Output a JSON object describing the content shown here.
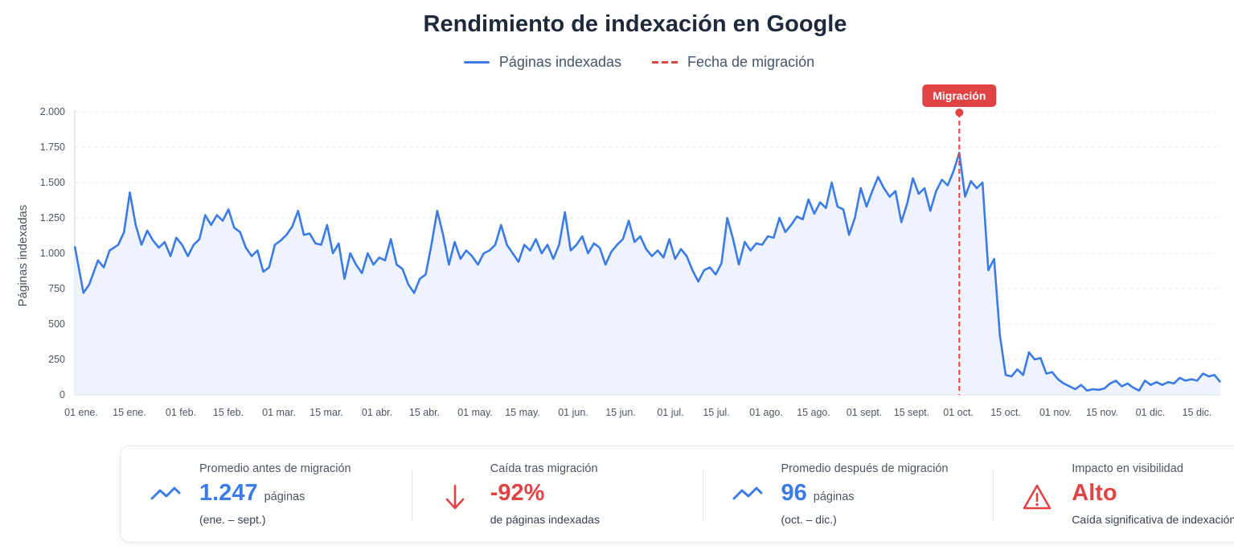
{
  "header": {
    "title": "Rendimiento de indexación en Google",
    "legend": [
      {
        "label": "Páginas indexadas",
        "color": "#3b7be6",
        "style": "solid"
      },
      {
        "label": "Fecha de migración",
        "color": "#e04343",
        "style": "dashed"
      }
    ]
  },
  "chart_data": {
    "type": "area",
    "title": "Rendimiento de indexación en Google",
    "xlabel": "",
    "ylabel": "Páginas indexadas",
    "ylim": [
      0,
      2000
    ],
    "yticks": [
      0,
      250,
      500,
      750,
      1000,
      1250,
      1500,
      1750,
      2000
    ],
    "ytick_labels": [
      "0",
      "250",
      "500",
      "750",
      "1.000",
      "1.250",
      "1.500",
      "1.750",
      "2.000"
    ],
    "x_start": "01 ene.",
    "x_end": "23 dic.",
    "xtick_labels": [
      "01 ene.",
      "15 ene.",
      "01 feb.",
      "15 feb.",
      "01 mar.",
      "15 mar.",
      "01 abr.",
      "15 abr.",
      "01 may.",
      "15 may.",
      "01 jun.",
      "15 jun.",
      "01 jul.",
      "15 jul.",
      "01 ago.",
      "15 ago.",
      "01 sept.",
      "15 sept.",
      "01 oct.",
      "15 oct.",
      "01 nov.",
      "15 nov.",
      "01 dic.",
      "15 dic."
    ],
    "grid": true,
    "legend_position": "top",
    "series": [
      {
        "name": "Páginas indexadas",
        "color": "#3b7be6",
        "points": [
          [
            0,
            1050
          ],
          [
            3,
            720
          ],
          [
            5,
            780
          ],
          [
            8,
            950
          ],
          [
            10,
            900
          ],
          [
            12,
            1020
          ],
          [
            15,
            1060
          ],
          [
            17,
            1150
          ],
          [
            19,
            1430
          ],
          [
            21,
            1200
          ],
          [
            23,
            1060
          ],
          [
            25,
            1160
          ],
          [
            27,
            1090
          ],
          [
            29,
            1040
          ],
          [
            31,
            1080
          ],
          [
            33,
            980
          ],
          [
            35,
            1110
          ],
          [
            37,
            1060
          ],
          [
            39,
            980
          ],
          [
            41,
            1060
          ],
          [
            43,
            1100
          ],
          [
            45,
            1270
          ],
          [
            47,
            1200
          ],
          [
            49,
            1270
          ],
          [
            51,
            1230
          ],
          [
            53,
            1310
          ],
          [
            55,
            1180
          ],
          [
            57,
            1150
          ],
          [
            59,
            1040
          ],
          [
            61,
            980
          ],
          [
            63,
            1020
          ],
          [
            65,
            870
          ],
          [
            67,
            900
          ],
          [
            69,
            1060
          ],
          [
            71,
            1090
          ],
          [
            73,
            1130
          ],
          [
            75,
            1190
          ],
          [
            77,
            1300
          ],
          [
            79,
            1130
          ],
          [
            81,
            1140
          ],
          [
            83,
            1070
          ],
          [
            85,
            1060
          ],
          [
            87,
            1200
          ],
          [
            89,
            1000
          ],
          [
            91,
            1070
          ],
          [
            93,
            820
          ],
          [
            95,
            1000
          ],
          [
            97,
            920
          ],
          [
            99,
            860
          ],
          [
            101,
            1000
          ],
          [
            103,
            920
          ],
          [
            105,
            970
          ],
          [
            107,
            950
          ],
          [
            109,
            1100
          ],
          [
            111,
            920
          ],
          [
            113,
            890
          ],
          [
            115,
            780
          ],
          [
            117,
            720
          ],
          [
            119,
            820
          ],
          [
            121,
            850
          ],
          [
            123,
            1060
          ],
          [
            125,
            1300
          ],
          [
            127,
            1130
          ],
          [
            129,
            920
          ],
          [
            131,
            1080
          ],
          [
            133,
            960
          ],
          [
            135,
            1020
          ],
          [
            137,
            980
          ],
          [
            139,
            920
          ],
          [
            141,
            1000
          ],
          [
            143,
            1020
          ],
          [
            145,
            1060
          ],
          [
            147,
            1200
          ],
          [
            149,
            1060
          ],
          [
            151,
            1000
          ],
          [
            153,
            940
          ],
          [
            155,
            1060
          ],
          [
            157,
            1020
          ],
          [
            159,
            1100
          ],
          [
            161,
            1000
          ],
          [
            163,
            1060
          ],
          [
            165,
            960
          ],
          [
            167,
            1060
          ],
          [
            169,
            1290
          ],
          [
            171,
            1020
          ],
          [
            173,
            1060
          ],
          [
            175,
            1120
          ],
          [
            177,
            1000
          ],
          [
            179,
            1070
          ],
          [
            181,
            1040
          ],
          [
            183,
            920
          ],
          [
            185,
            1010
          ],
          [
            187,
            1060
          ],
          [
            189,
            1100
          ],
          [
            191,
            1230
          ],
          [
            193,
            1080
          ],
          [
            195,
            1120
          ],
          [
            197,
            1030
          ],
          [
            199,
            980
          ],
          [
            201,
            1020
          ],
          [
            203,
            970
          ],
          [
            205,
            1100
          ],
          [
            207,
            960
          ],
          [
            209,
            1030
          ],
          [
            211,
            980
          ],
          [
            213,
            880
          ],
          [
            215,
            800
          ],
          [
            217,
            880
          ],
          [
            219,
            900
          ],
          [
            221,
            850
          ],
          [
            223,
            930
          ],
          [
            225,
            1250
          ],
          [
            227,
            1100
          ],
          [
            229,
            920
          ],
          [
            231,
            1080
          ],
          [
            233,
            1020
          ],
          [
            235,
            1070
          ],
          [
            237,
            1060
          ],
          [
            239,
            1120
          ],
          [
            241,
            1110
          ],
          [
            243,
            1250
          ],
          [
            245,
            1150
          ],
          [
            247,
            1200
          ],
          [
            249,
            1260
          ],
          [
            251,
            1240
          ],
          [
            253,
            1380
          ],
          [
            255,
            1280
          ],
          [
            257,
            1360
          ],
          [
            259,
            1320
          ],
          [
            261,
            1500
          ],
          [
            263,
            1330
          ],
          [
            265,
            1310
          ],
          [
            267,
            1130
          ],
          [
            269,
            1250
          ],
          [
            271,
            1460
          ],
          [
            273,
            1330
          ],
          [
            275,
            1440
          ],
          [
            277,
            1540
          ],
          [
            279,
            1460
          ],
          [
            281,
            1400
          ],
          [
            283,
            1440
          ],
          [
            285,
            1220
          ],
          [
            287,
            1350
          ],
          [
            289,
            1530
          ],
          [
            291,
            1420
          ],
          [
            293,
            1460
          ],
          [
            295,
            1300
          ],
          [
            297,
            1440
          ],
          [
            299,
            1520
          ],
          [
            301,
            1480
          ],
          [
            303,
            1580
          ],
          [
            305,
            1710
          ],
          [
            307,
            1400
          ],
          [
            309,
            1510
          ],
          [
            311,
            1460
          ],
          [
            313,
            1500
          ],
          [
            315,
            880
          ],
          [
            317,
            960
          ],
          [
            319,
            420
          ],
          [
            321,
            140
          ],
          [
            323,
            130
          ],
          [
            325,
            180
          ],
          [
            327,
            140
          ],
          [
            329,
            300
          ],
          [
            331,
            250
          ],
          [
            333,
            260
          ],
          [
            335,
            150
          ],
          [
            337,
            160
          ],
          [
            339,
            110
          ],
          [
            341,
            80
          ],
          [
            343,
            60
          ],
          [
            345,
            40
          ],
          [
            347,
            70
          ],
          [
            349,
            30
          ],
          [
            351,
            40
          ],
          [
            353,
            35
          ],
          [
            355,
            45
          ],
          [
            357,
            80
          ],
          [
            359,
            100
          ],
          [
            361,
            60
          ],
          [
            363,
            80
          ],
          [
            365,
            50
          ],
          [
            367,
            30
          ],
          [
            369,
            100
          ],
          [
            371,
            70
          ],
          [
            373,
            90
          ],
          [
            375,
            70
          ],
          [
            377,
            90
          ],
          [
            379,
            80
          ],
          [
            381,
            120
          ],
          [
            383,
            100
          ],
          [
            385,
            110
          ],
          [
            387,
            100
          ],
          [
            389,
            150
          ],
          [
            391,
            130
          ],
          [
            393,
            140
          ],
          [
            395,
            90
          ]
        ]
      }
    ],
    "annotations": [
      {
        "type": "vline",
        "x": 305,
        "label": "Migración",
        "color": "#e04343"
      }
    ]
  },
  "cards": [
    {
      "icon": "trend-icon",
      "label": "Promedio antes de migración",
      "value": "1.247",
      "unit": "páginas",
      "note": "(ene. – sept.)",
      "color": "#3b7be6"
    },
    {
      "icon": "arrow-down-icon",
      "label": "Caída tras migración",
      "value": "-92%",
      "unit": "",
      "note": "de páginas indexadas",
      "color": "#e04343"
    },
    {
      "icon": "trend-icon",
      "label": "Promedio después de migración",
      "value": "96",
      "unit": "páginas",
      "note": "(oct. – dic.)",
      "color": "#3b7be6"
    },
    {
      "icon": "warning-icon",
      "label": "Impacto en visibilidad",
      "value": "Alto",
      "unit": "",
      "note": "Caída significativa de indexación",
      "color": "#e04343"
    }
  ]
}
